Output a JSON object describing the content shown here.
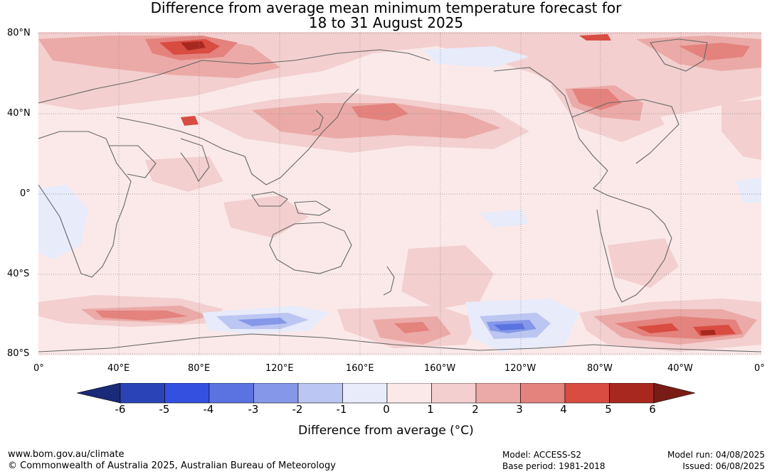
{
  "title": {
    "line1": "Difference from average mean minimum temperature forecast for",
    "line2": "18 to 31 August 2025"
  },
  "map": {
    "lat_labels": [
      "80°N",
      "40°N",
      "0°",
      "40°S",
      "80°S"
    ],
    "lon_labels": [
      "0°",
      "40°E",
      "80°E",
      "120°E",
      "160°E",
      "160°W",
      "120°W",
      "80°W",
      "40°W",
      "0°"
    ],
    "background_color": "#fbe9e9",
    "coastline_color": "#666666"
  },
  "colorbar": {
    "label": "Difference from average (°C)",
    "tick_labels": [
      "-6",
      "-5",
      "-4",
      "-3",
      "-2",
      "-1",
      "0",
      "1",
      "2",
      "3",
      "4",
      "5",
      "6"
    ],
    "colors": [
      "#1a2a78",
      "#2a44b8",
      "#3450e0",
      "#5a73e0",
      "#8597e8",
      "#bcc6f2",
      "#e7ebfa",
      "#fbe9e9",
      "#f3cfcf",
      "#ebaaa7",
      "#e4827d",
      "#d94c42",
      "#a8281f",
      "#7a1c16"
    ]
  },
  "footer": {
    "website": "www.bom.gov.au/climate",
    "copyright": "© Commonwealth of Australia 2025, Australian Bureau of Meteorology",
    "model": "Model: ACCESS-S2",
    "base_period": "Base period: 1981-2018",
    "model_run": "Model run: 04/08/2025",
    "issued": "Issued: 06/08/2025"
  }
}
